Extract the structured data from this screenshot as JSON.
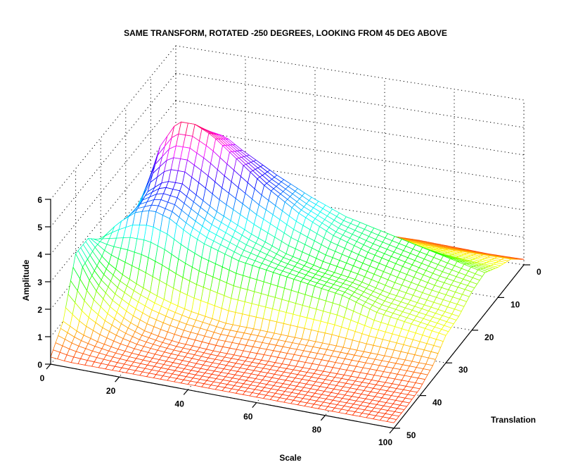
{
  "chart_data": {
    "type": "mesh",
    "title": "SAME TRANSFORM, ROTATED -250 DEGREES, LOOKING FROM 45 DEG ABOVE",
    "xlabel": "Scale",
    "ylabel": "Translation",
    "zlabel": "Amplitude",
    "xlim": [
      0,
      100
    ],
    "ylim": [
      0,
      50
    ],
    "zlim": [
      0,
      6
    ],
    "x_ticks": [
      "0",
      "20",
      "40",
      "60",
      "80",
      "100"
    ],
    "y_ticks": [
      "0",
      "10",
      "20",
      "30",
      "40",
      "50"
    ],
    "z_ticks": [
      "0",
      "1",
      "2",
      "3",
      "4",
      "5",
      "6"
    ],
    "grid": true,
    "colormap": "hsv",
    "view": {
      "azimuth": -250,
      "elevation": 45
    },
    "scale_values": [
      0,
      5,
      10,
      15,
      20,
      25,
      30,
      40,
      50,
      60,
      70,
      80,
      90,
      100
    ],
    "translation_values": [
      0,
      5,
      10,
      15,
      20,
      25,
      30,
      35,
      40,
      45,
      50
    ],
    "amplitude": [
      [
        0.2,
        0.3,
        0.35,
        0.4,
        0.4,
        0.4,
        0.4,
        0.4,
        0.35,
        0.3,
        0.3,
        0.25,
        0.2,
        0.2
      ],
      [
        0.2,
        0.5,
        0.7,
        0.9,
        1.0,
        1.0,
        1.0,
        1.0,
        0.95,
        0.9,
        0.85,
        0.8,
        0.8,
        0.8
      ],
      [
        0.2,
        1.0,
        1.6,
        2.0,
        2.2,
        2.2,
        2.1,
        1.9,
        1.7,
        1.5,
        1.4,
        1.3,
        1.2,
        1.1
      ],
      [
        0.2,
        2.3,
        3.9,
        4.8,
        5.0,
        4.9,
        4.5,
        3.8,
        3.2,
        2.7,
        2.4,
        2.1,
        1.8,
        1.5
      ],
      [
        0.3,
        2.8,
        4.8,
        5.8,
        5.8,
        5.5,
        5.0,
        4.0,
        3.2,
        2.6,
        2.2,
        1.9,
        1.6,
        1.4
      ],
      [
        1.1,
        2.6,
        3.7,
        4.2,
        4.2,
        3.8,
        3.4,
        2.8,
        2.3,
        2.0,
        1.8,
        1.5,
        1.3,
        1.1
      ],
      [
        2.3,
        3.0,
        3.5,
        3.7,
        3.5,
        3.1,
        2.8,
        2.4,
        2.2,
        2.0,
        1.8,
        1.4,
        1.2,
        1.0
      ],
      [
        2.9,
        2.2,
        1.8,
        1.5,
        1.25,
        1.05,
        0.9,
        0.7,
        0.67,
        0.63,
        0.6,
        0.56,
        0.53,
        0.5
      ],
      [
        2.9,
        1.8,
        1.2,
        0.8,
        0.55,
        0.42,
        0.34,
        0.27,
        0.25,
        0.25,
        0.25,
        0.25,
        0.25,
        0.25
      ],
      [
        1.0,
        0.67,
        0.49,
        0.37,
        0.3,
        0.26,
        0.24,
        0.2,
        0.2,
        0.2,
        0.2,
        0.2,
        0.2,
        0.2
      ],
      [
        0.26,
        0.2,
        0.2,
        0.2,
        0.2,
        0.2,
        0.2,
        0.2,
        0.2,
        0.2,
        0.2,
        0.2,
        0.2,
        0.2
      ]
    ]
  }
}
